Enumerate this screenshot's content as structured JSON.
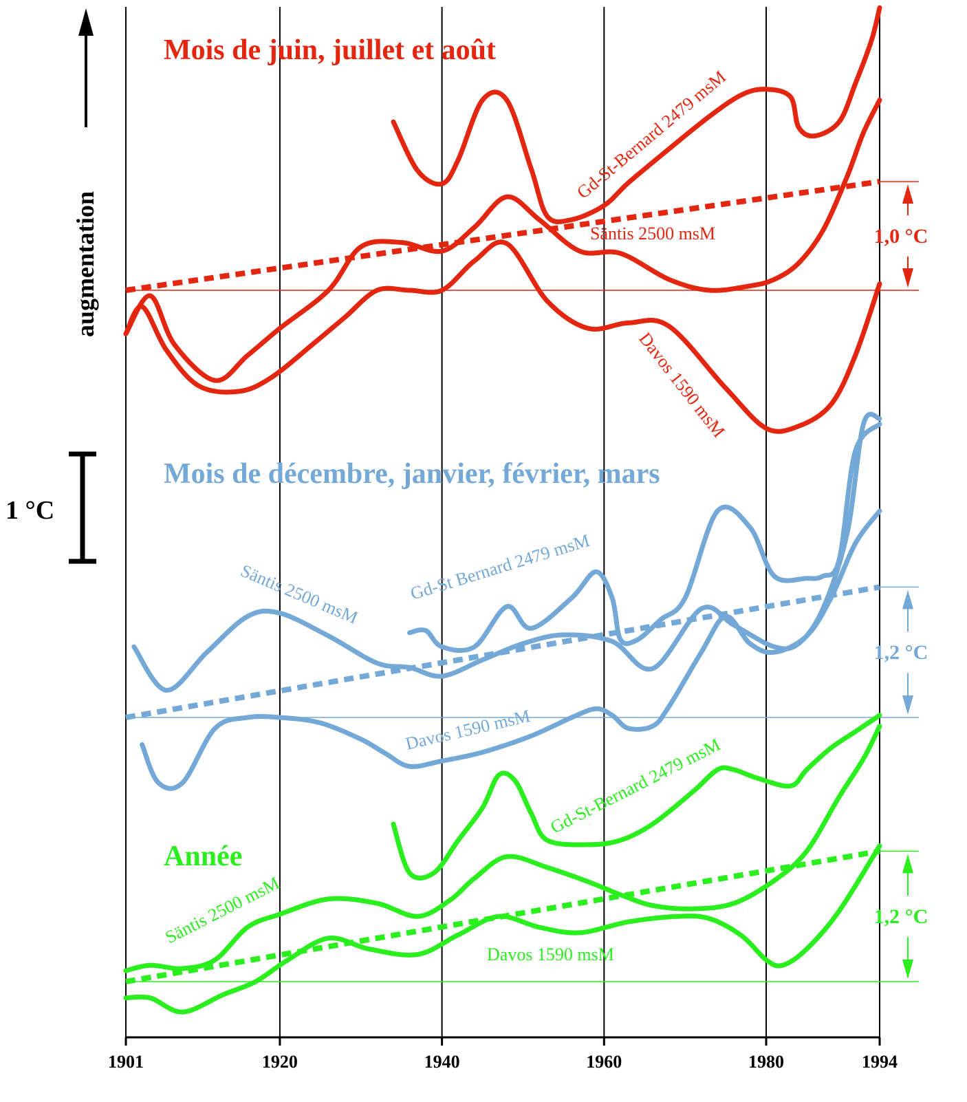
{
  "colors": {
    "summer": "#e32610",
    "winter": "#74a8d6",
    "annual": "#2bee1f",
    "axis": "#000000"
  },
  "chart_data": {
    "type": "line",
    "y_axis_label": "augmentation",
    "scale_bar_label": "1 °C",
    "x_ticks": [
      1901,
      1920,
      1940,
      1960,
      1980,
      1994
    ],
    "xlim": [
      1901,
      1994
    ],
    "grid_x": true,
    "panels": [
      {
        "id": "summer",
        "title": "Mois de juin, juillet et août",
        "color": "#e32610",
        "trend_delta_label": "1,0 °C",
        "trend": {
          "x": [
            1901,
            1994
          ],
          "y": [
            0.0,
            1.0
          ]
        },
        "series": [
          {
            "name": "Gd-St-Bernard  2479 msM",
            "x": [
              1934,
              1937,
              1940,
              1942,
              1945,
              1948,
              1951,
              1953,
              1956,
              1960,
              1963,
              1968,
              1973,
              1977,
              1980,
              1983,
              1984,
              1986,
              1989,
              1991,
              1993,
              1994
            ],
            "y": [
              1.55,
              1.1,
              0.98,
              1.2,
              1.75,
              1.75,
              1.12,
              0.68,
              0.65,
              0.78,
              0.99,
              1.3,
              1.6,
              1.8,
              1.85,
              1.78,
              1.5,
              1.42,
              1.55,
              1.9,
              2.3,
              2.6
            ]
          },
          {
            "name": "Säntis  2500 msM",
            "x": [
              1901,
              1904,
              1907,
              1912,
              1916,
              1920,
              1926,
              1930,
              1935,
              1940,
              1944,
              1948,
              1952,
              1957,
              1962,
              1968,
              1973,
              1978,
              1981,
              1984,
              1987,
              1990,
              1992,
              1994
            ],
            "y": [
              -0.4,
              -0.05,
              -0.5,
              -0.83,
              -0.6,
              -0.35,
              0.0,
              0.4,
              0.44,
              0.36,
              0.58,
              0.86,
              0.65,
              0.36,
              0.34,
              0.1,
              0.0,
              0.04,
              0.1,
              0.25,
              0.55,
              1.05,
              1.45,
              1.75
            ]
          },
          {
            "name": "Davos 1590 msM",
            "x": [
              1901,
              1903,
              1906,
              1910,
              1915,
              1919,
              1924,
              1928,
              1932,
              1936,
              1940,
              1944,
              1948,
              1953,
              1958,
              1963,
              1968,
              1975,
              1980,
              1984,
              1988,
              1991,
              1994
            ],
            "y": [
              -0.4,
              -0.15,
              -0.55,
              -0.88,
              -0.93,
              -0.8,
              -0.5,
              -0.25,
              0.0,
              0.0,
              0.0,
              0.27,
              0.43,
              -0.1,
              -0.35,
              -0.3,
              -0.33,
              -0.9,
              -1.27,
              -1.25,
              -1.05,
              -0.6,
              0.06
            ]
          }
        ]
      },
      {
        "id": "winter",
        "title": "Mois de décembre, janvier, février, mars",
        "color": "#74a8d6",
        "trend_delta_label": "1,2 °C",
        "trend": {
          "x": [
            1901,
            1994
          ],
          "y": [
            0.0,
            1.2
          ]
        },
        "series": [
          {
            "name": "Gd-St Bernard 2479 msM",
            "x": [
              1936,
              1938,
              1940,
              1944,
              1948,
              1951,
              1956,
              1959,
              1961,
              1962,
              1964,
              1967,
              1970,
              1974,
              1978,
              1981,
              1985,
              1987,
              1989,
              1991,
              1994
            ],
            "y": [
              0.78,
              0.8,
              0.65,
              0.65,
              1.02,
              0.82,
              1.1,
              1.34,
              1.1,
              0.72,
              0.71,
              0.9,
              1.1,
              1.9,
              1.75,
              1.3,
              1.28,
              1.3,
              1.45,
              2.45,
              2.7
            ]
          },
          {
            "name": "Säntis 2500 msM",
            "x": [
              1902,
              1906,
              1911,
              1916,
              1920,
              1926,
              1932,
              1936,
              1940,
              1945,
              1950,
              1955,
              1961,
              1966,
              1972,
              1976,
              1981,
              1984,
              1987,
              1990,
              1992,
              1994
            ],
            "y": [
              0.65,
              0.25,
              0.6,
              0.93,
              0.96,
              0.75,
              0.5,
              0.46,
              0.38,
              0.53,
              0.68,
              0.76,
              0.7,
              0.45,
              1.0,
              0.85,
              0.65,
              0.68,
              1.0,
              1.7,
              2.7,
              2.75
            ]
          },
          {
            "name": "Davos 1590 msM",
            "x": [
              1903,
              1905,
              1908,
              1912,
              1916,
              1920,
              1925,
              1930,
              1933,
              1936,
              1940,
              1945,
              1951,
              1956,
              1959,
              1961,
              1963,
              1966,
              1968,
              1972,
              1975,
              1978,
              1981,
              1985,
              1988,
              1991,
              1994
            ],
            "y": [
              -0.25,
              -0.6,
              -0.6,
              -0.1,
              0.0,
              0.0,
              -0.05,
              -0.2,
              -0.33,
              -0.45,
              -0.4,
              -0.32,
              -0.17,
              0.0,
              0.08,
              0.02,
              -0.1,
              -0.08,
              0.1,
              0.6,
              0.93,
              0.68,
              0.6,
              0.75,
              1.1,
              1.6,
              1.9
            ]
          }
        ]
      },
      {
        "id": "annual",
        "title": "Année",
        "color": "#2bee1f",
        "trend_delta_label": "1,2 °C",
        "trend": {
          "x": [
            1901,
            1994
          ],
          "y": [
            0.0,
            1.2
          ]
        },
        "series": [
          {
            "name": "Gd-St-Bernard  2479 msM",
            "x": [
              1934,
              1936,
              1939,
              1942,
              1945,
              1947,
              1949,
              1951,
              1953,
              1958,
              1962,
              1966,
              1971,
              1974,
              1976,
              1979,
              1983,
              1985,
              1988,
              1991,
              1994
            ],
            "y": [
              1.45,
              1.0,
              1.0,
              1.3,
              1.6,
              1.9,
              1.85,
              1.55,
              1.3,
              1.26,
              1.3,
              1.45,
              1.75,
              1.95,
              1.95,
              1.87,
              1.8,
              1.95,
              2.15,
              2.3,
              2.45
            ]
          },
          {
            "name": "Säntis  2500 msM",
            "x": [
              1901,
              1904,
              1908,
              1912,
              1916,
              1920,
              1926,
              1932,
              1937,
              1941,
              1944,
              1948,
              1953,
              1958,
              1962,
              1966,
              1971,
              1976,
              1981,
              1985,
              1989,
              1992,
              1994
            ],
            "y": [
              0.1,
              0.15,
              0.12,
              0.2,
              0.5,
              0.62,
              0.76,
              0.72,
              0.6,
              0.75,
              0.95,
              1.15,
              1.05,
              0.92,
              0.8,
              0.7,
              0.67,
              0.72,
              0.93,
              1.2,
              1.7,
              2.05,
              2.35
            ]
          },
          {
            "name": "Davos 1590 msM",
            "x": [
              1901,
              1904,
              1908,
              1913,
              1917,
              1921,
              1926,
              1931,
              1937,
              1942,
              1947,
              1952,
              1957,
              1963,
              1969,
              1973,
              1977,
              1980,
              1982,
              1985,
              1989,
              1994
            ],
            "y": [
              -0.15,
              -0.15,
              -0.28,
              -0.12,
              0.0,
              0.2,
              0.4,
              0.3,
              0.25,
              0.43,
              0.6,
              0.5,
              0.45,
              0.55,
              0.6,
              0.58,
              0.42,
              0.2,
              0.15,
              0.3,
              0.65,
              1.25
            ]
          }
        ]
      }
    ]
  }
}
